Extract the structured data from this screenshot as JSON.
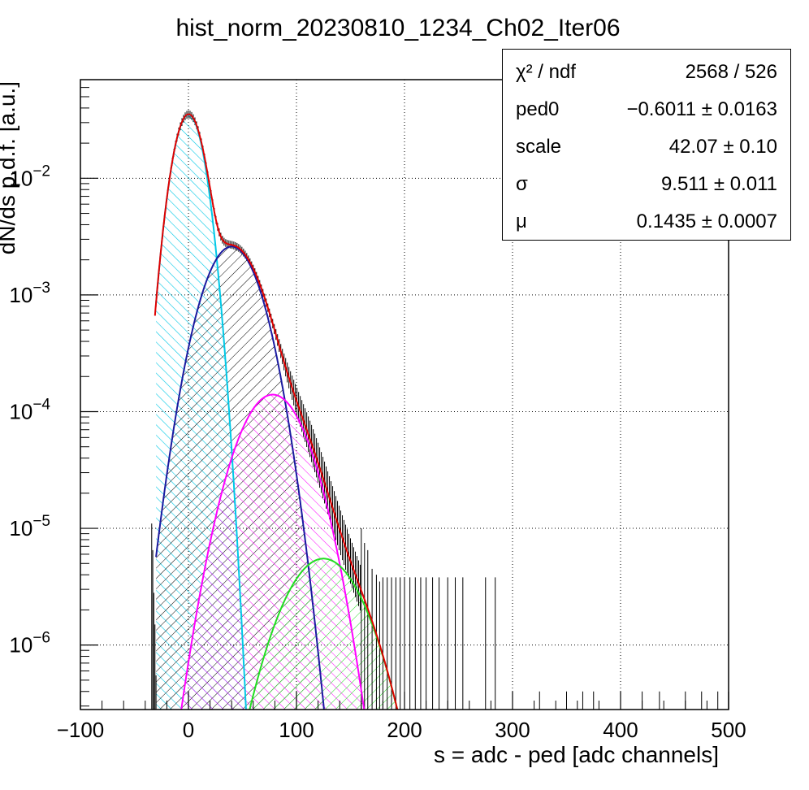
{
  "chart_data": {
    "type": "line",
    "title": "hist_norm_20230810_1234_Ch02_Iter06",
    "xlabel": "s = adc - ped [adc channels]",
    "ylabel": "dN/ds p.d.f. [a.u.]",
    "xlim": [
      -100,
      500
    ],
    "ylim": [
      2.8e-07,
      0.07
    ],
    "yscale": "log",
    "grid": true,
    "x_ticks": [
      "−100",
      "0",
      "100",
      "200",
      "300",
      "400",
      "500"
    ],
    "y_ticks": [
      {
        "base": "10",
        "exp": "−2",
        "value": 0.01
      },
      {
        "base": "10",
        "exp": "−3",
        "value": 0.001
      },
      {
        "base": "10",
        "exp": "−4",
        "value": 0.0001
      },
      {
        "base": "10",
        "exp": "−5",
        "value": 1e-05
      },
      {
        "base": "10",
        "exp": "−6",
        "value": 1e-06
      }
    ],
    "series": [
      {
        "type": "gaussian",
        "color": "#00c8e6",
        "hatch": "cyan-hatch",
        "mu": 0,
        "sigma": 11,
        "amplitude": 0.035,
        "x_range": [
          -30,
          60
        ]
      },
      {
        "type": "gaussian",
        "color": "#1a1aa0",
        "hatch": "black-hatch",
        "mu": 40,
        "sigma": 20,
        "amplitude": 0.0026,
        "x_range": [
          -30,
          160
        ]
      },
      {
        "type": "gaussian",
        "color": "#ff00ff",
        "hatch": "magenta-hatch",
        "mu": 78,
        "sigma": 24,
        "amplitude": 0.00014,
        "x_range": [
          -30,
          220
        ]
      },
      {
        "type": "gaussian",
        "color": "#22dd22",
        "hatch": "green-hatch",
        "mu": 125,
        "sigma": 28,
        "amplitude": 5.5e-06,
        "x_range": [
          -30,
          260
        ]
      }
    ],
    "total_fit": {
      "color": "#e00000",
      "x_range": [
        -31,
        215
      ]
    },
    "histogram": {
      "color": "#000000",
      "x": [
        -34,
        -33,
        -32,
        -31,
        -30,
        160,
        163,
        166,
        170,
        174,
        177,
        180,
        184,
        188,
        192,
        196,
        200,
        205,
        210,
        215,
        220,
        226,
        232,
        240,
        247,
        254,
        275,
        284,
        325,
        350,
        365,
        375,
        400,
        420,
        436,
        460,
        475,
        490
      ],
      "y": [
        1.1e-05,
        6.5e-06,
        2.8e-06,
        1.5e-06,
        5.5e-07,
        1e-05,
        7.5e-06,
        6.5e-06,
        4.5e-06,
        4e-06,
        3.5e-06,
        3.8e-06,
        3.8e-06,
        3.8e-06,
        3.8e-06,
        3.8e-06,
        3.8e-06,
        3.8e-06,
        3.8e-06,
        3.8e-06,
        3.8e-06,
        3.8e-06,
        3.8e-06,
        3.8e-06,
        3.8e-06,
        3.8e-06,
        3.8e-06,
        3.8e-06,
        4e-07,
        4e-07,
        4e-07,
        4e-07,
        4e-07,
        4e-07,
        4e-07,
        4e-07,
        4e-07,
        4e-07
      ]
    }
  },
  "stats": {
    "rows": [
      {
        "name": "χ² / ndf",
        "value": "2568 / 526"
      },
      {
        "name": "ped0",
        "value": "−0.6011 ± 0.0163"
      },
      {
        "name": "scale",
        "value": "42.07 ± 0.10"
      },
      {
        "name": "σ",
        "value": "9.511 ± 0.011"
      },
      {
        "name": "μ",
        "value": "0.1435 ± 0.0007"
      }
    ]
  }
}
